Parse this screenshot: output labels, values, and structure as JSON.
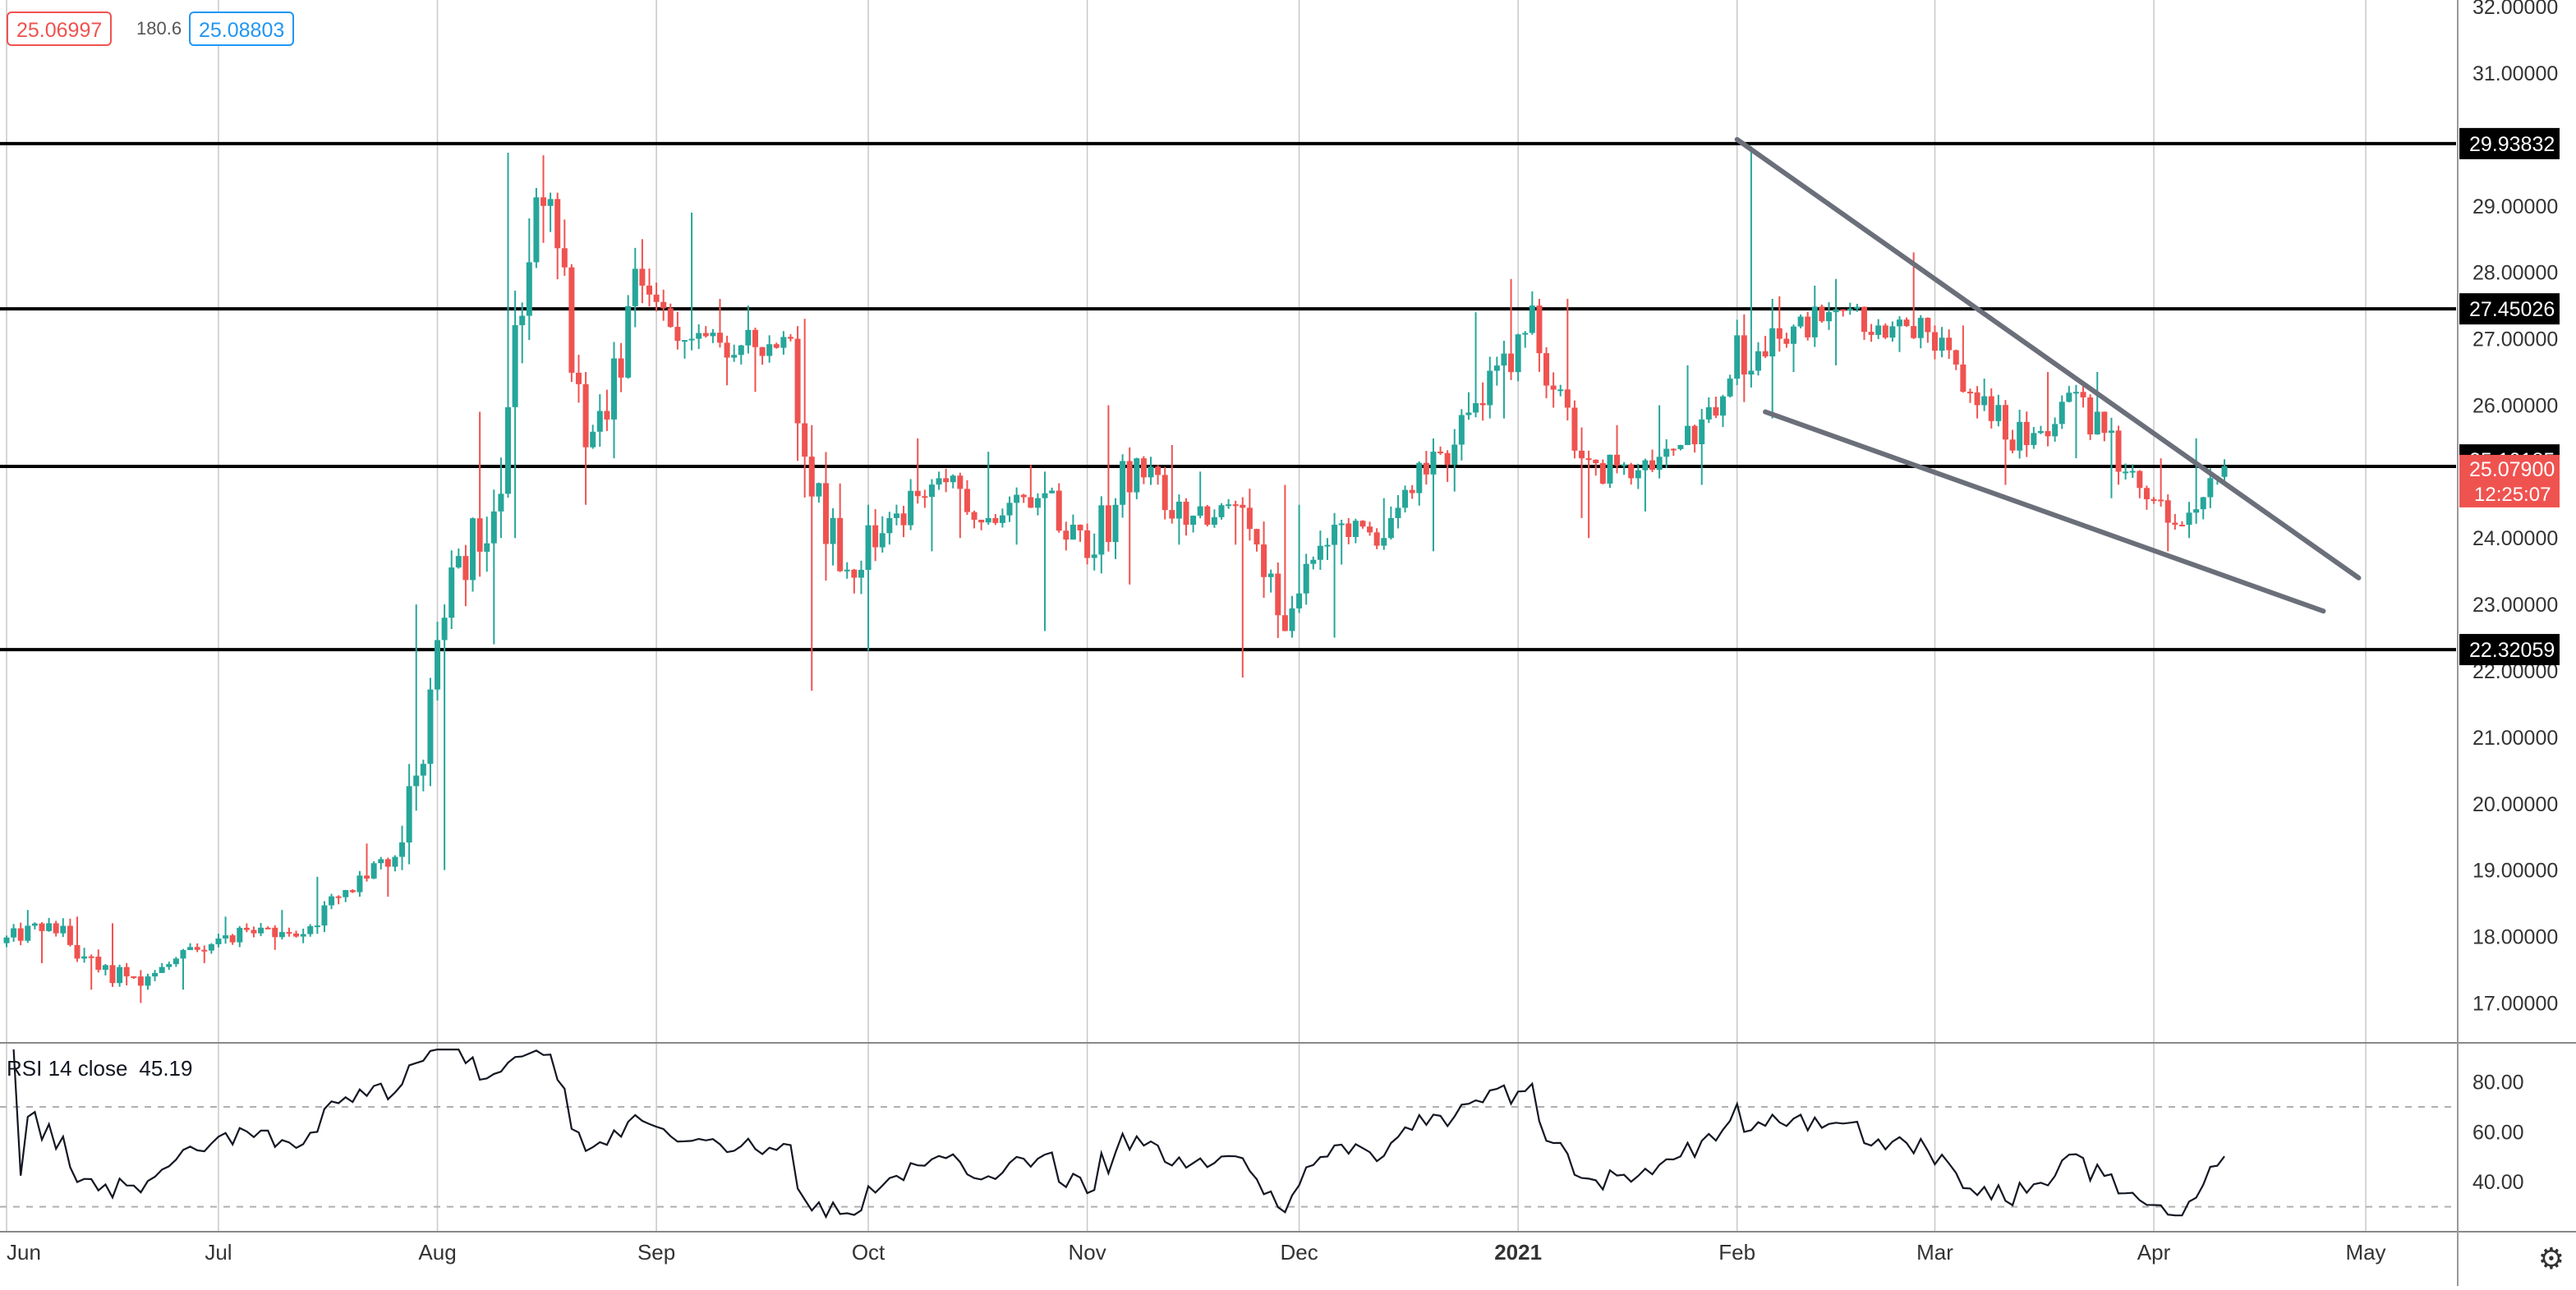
{
  "legend": {
    "bid": "25.06997",
    "spread": "180.6",
    "ask": "25.08803"
  },
  "rsi": {
    "label": "RSI 14 close",
    "value": "45.19",
    "ticks": [
      "80.00",
      "60.00",
      "40.00"
    ],
    "band_upper": 70,
    "band_lower": 30
  },
  "settings_icon": "gear-icon",
  "colors": {
    "up": "#26a69a",
    "down": "#ef5350",
    "trendline": "#6b6f7a",
    "grid": "#c8c8c8",
    "level": "#000000"
  },
  "chart_data": {
    "type": "candlestick",
    "x_labels": [
      "Jun",
      "Jul",
      "Aug",
      "Sep",
      "Oct",
      "Nov",
      "Dec",
      "2021",
      "Feb",
      "Mar",
      "Apr",
      "May"
    ],
    "y_ticks": [
      "17.00000",
      "18.00000",
      "19.00000",
      "20.00000",
      "21.00000",
      "22.00000",
      "23.00000",
      "24.00000",
      "25.00000",
      "26.00000",
      "27.00000",
      "28.00000",
      "29.00000",
      "30.00000",
      "31.00000",
      "32.00000"
    ],
    "y_range": [
      16.4,
      32.1
    ],
    "grid": true,
    "horizontal_levels": [
      "29.93832",
      "27.45026",
      "25.07900",
      "22.32059"
    ],
    "price_tags": {
      "recent_high": "25.10185",
      "last_price": "25.07900",
      "countdown": "12:25:07"
    },
    "trendlines": [
      {
        "from": [
          "2021-02-01",
          30.0
        ],
        "to": [
          "2021-04-30",
          23.4
        ]
      },
      {
        "from": [
          "2021-02-05",
          25.9
        ],
        "to": [
          "2021-04-25",
          22.9
        ]
      }
    ],
    "ohlc_estimated": [
      [
        "2020-06-01",
        17.9,
        18.4,
        17.6,
        18.2
      ],
      [
        "2020-06-08",
        18.2,
        18.3,
        17.2,
        17.5
      ],
      [
        "2020-06-15",
        17.5,
        18.2,
        17.0,
        17.4
      ],
      [
        "2020-06-22",
        17.4,
        17.9,
        17.2,
        17.8
      ],
      [
        "2020-06-29",
        17.8,
        18.3,
        17.6,
        18.1
      ],
      [
        "2020-07-06",
        18.1,
        18.4,
        17.8,
        18.0
      ],
      [
        "2020-07-13",
        18.0,
        18.9,
        17.9,
        18.7
      ],
      [
        "2020-07-20",
        18.7,
        19.4,
        18.6,
        19.2
      ],
      [
        "2020-07-27",
        19.2,
        23.0,
        19.0,
        22.8
      ],
      [
        "2020-08-03",
        22.8,
        25.9,
        22.4,
        24.4
      ],
      [
        "2020-08-10",
        24.4,
        29.8,
        24.0,
        29.0
      ],
      [
        "2020-08-17",
        29.0,
        29.2,
        24.5,
        25.6
      ],
      [
        "2020-08-24",
        25.6,
        28.5,
        25.2,
        27.8
      ],
      [
        "2020-08-31",
        27.8,
        28.9,
        26.7,
        27.0
      ],
      [
        "2020-09-07",
        27.0,
        27.6,
        26.3,
        26.9
      ],
      [
        "2020-09-14",
        26.9,
        27.5,
        26.2,
        27.0
      ],
      [
        "2020-09-21",
        27.0,
        27.3,
        21.7,
        23.5
      ],
      [
        "2020-09-28",
        23.5,
        24.5,
        22.3,
        24.3
      ],
      [
        "2020-10-05",
        24.3,
        25.5,
        23.8,
        24.9
      ],
      [
        "2020-10-12",
        24.9,
        25.3,
        24.0,
        24.3
      ],
      [
        "2020-10-19",
        24.3,
        25.1,
        23.9,
        24.6
      ],
      [
        "2020-10-26",
        24.6,
        25.0,
        22.6,
        23.7
      ],
      [
        "2020-11-02",
        23.7,
        26.0,
        23.3,
        25.2
      ],
      [
        "2020-11-09",
        25.2,
        25.4,
        23.9,
        24.2
      ],
      [
        "2020-11-16",
        24.2,
        25.0,
        23.9,
        24.5
      ],
      [
        "2020-11-23",
        24.5,
        24.8,
        21.9,
        22.6
      ],
      [
        "2020-11-30",
        22.6,
        24.5,
        22.5,
        24.2
      ],
      [
        "2020-12-07",
        24.2,
        24.6,
        23.6,
        24.0
      ],
      [
        "2020-12-14",
        24.0,
        25.5,
        23.8,
        25.3
      ],
      [
        "2020-12-21",
        25.3,
        27.4,
        24.7,
        26.0
      ],
      [
        "2020-12-28",
        26.0,
        27.9,
        25.8,
        27.5
      ],
      [
        "2021-01-04",
        27.5,
        27.6,
        24.3,
        25.2
      ],
      [
        "2021-01-11",
        25.2,
        25.7,
        24.0,
        24.9
      ],
      [
        "2021-01-18",
        24.9,
        26.0,
        24.4,
        25.4
      ],
      [
        "2021-01-25",
        25.4,
        26.6,
        24.8,
        26.4
      ],
      [
        "2021-02-01",
        26.4,
        29.9,
        25.8,
        27.0
      ],
      [
        "2021-02-08",
        27.0,
        27.8,
        26.5,
        27.4
      ],
      [
        "2021-02-15",
        27.4,
        27.9,
        26.6,
        27.2
      ],
      [
        "2021-02-22",
        27.2,
        28.3,
        26.8,
        27.1
      ],
      [
        "2021-03-01",
        27.1,
        27.2,
        25.8,
        26.0
      ],
      [
        "2021-03-08",
        26.0,
        26.4,
        24.8,
        25.4
      ],
      [
        "2021-03-15",
        25.4,
        26.5,
        25.2,
        26.2
      ],
      [
        "2021-03-22",
        26.2,
        26.5,
        24.6,
        25.0
      ],
      [
        "2021-03-29",
        25.0,
        25.2,
        23.8,
        24.2
      ],
      [
        "2021-04-05",
        24.2,
        25.5,
        24.0,
        25.08
      ]
    ]
  }
}
